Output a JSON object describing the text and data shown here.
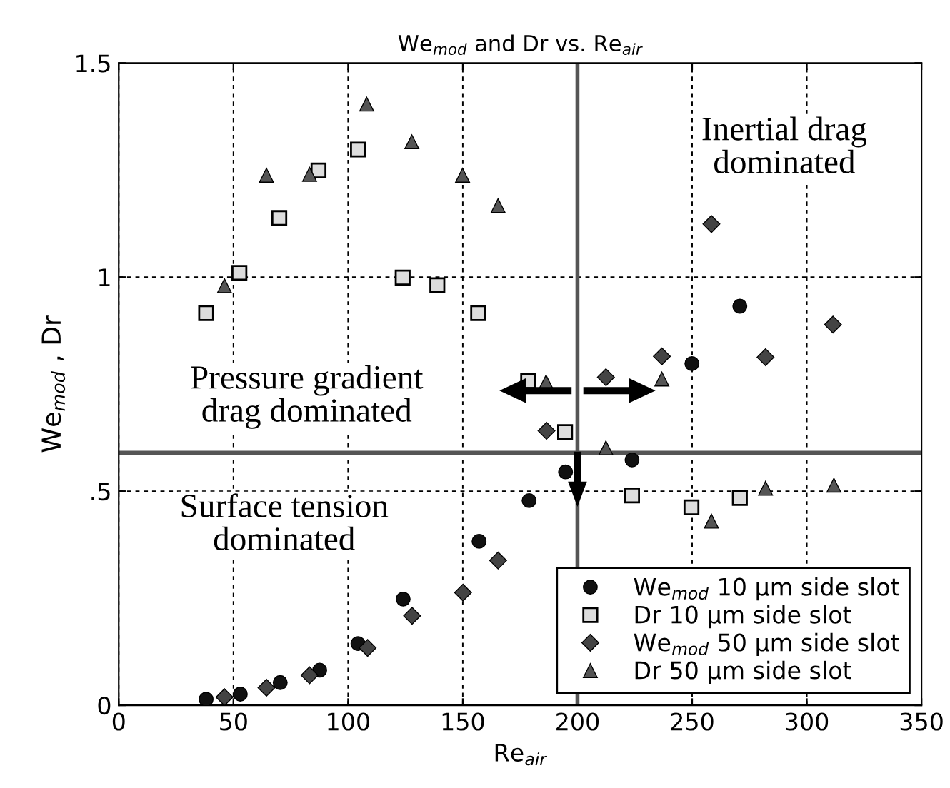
{
  "chart_data": {
    "type": "scatter",
    "title": "We$_{mod}$ and Dr vs. Re$_{air}$",
    "xlabel": "Re$_{air}$",
    "ylabel": "We$_{mod}$ , Dr",
    "xlim": [
      0,
      350
    ],
    "xticks": [
      0,
      50,
      100,
      150,
      200,
      250,
      300,
      350
    ],
    "ylim": [
      0,
      1.5
    ],
    "yticks": [
      0,
      {
        "value": 0.5,
        "label": ".5"
      },
      1,
      {
        "value": 1.5,
        "label": "1.5"
      }
    ],
    "grid": true,
    "legend": "bottom right",
    "series": [
      {
        "name": "We$_{mod}$ 10 μm side slot",
        "color": "#111111",
        "marker": "circle",
        "x": [
          38.1,
          53,
          70.4,
          87.6,
          104.3,
          124,
          157.1,
          178.9,
          194.8,
          223.8,
          249.9,
          270.8
        ],
        "values": [
          0.014,
          0.026,
          0.053,
          0.082,
          0.144,
          0.248,
          0.383,
          0.478,
          0.545,
          0.573,
          0.798,
          0.932
        ]
      },
      {
        "name": "Dr 10 μm side slot",
        "color": "#dddddd",
        "marker": "square",
        "x": [
          38.1,
          52.6,
          70,
          87.1,
          104.3,
          123.8,
          138.9,
          156.7,
          178.5,
          194.6,
          223.8,
          249.7,
          270.8
        ],
        "values": [
          0.916,
          1.01,
          1.138,
          1.249,
          1.298,
          0.999,
          0.981,
          0.916,
          0.757,
          0.638,
          0.49,
          0.462,
          0.484
        ]
      },
      {
        "name": "We$_{mod}$ 50 μm side slot",
        "color": "#444444",
        "marker": "diamond",
        "x": [
          46.1,
          64.4,
          83.2,
          108.5,
          127.9,
          150.1,
          165.4,
          186.5,
          212.4,
          236.8,
          258.4,
          282,
          311.4
        ],
        "values": [
          0.019,
          0.041,
          0.07,
          0.134,
          0.209,
          0.263,
          0.338,
          0.641,
          0.766,
          0.815,
          1.124,
          0.813,
          0.889
        ]
      },
      {
        "name": "Dr 50 μm side slot",
        "color": "#555555",
        "marker": "triangle",
        "x": [
          46.1,
          64.4,
          83.2,
          108.1,
          127.8,
          149.9,
          165.4,
          186.3,
          212.4,
          236.8,
          258.4,
          282,
          311.8
        ],
        "values": [
          0.98,
          1.238,
          1.24,
          1.404,
          1.316,
          1.238,
          1.167,
          0.755,
          0.601,
          0.762,
          0.43,
          0.507,
          0.514
        ]
      }
    ],
    "ref_lines": [
      {
        "axis": "x",
        "value": 200,
        "color": "#555555"
      },
      {
        "axis": "y",
        "value": 0.59,
        "color": "#555555"
      }
    ],
    "annotations": [
      "Inertial drag\ndominated",
      "Pressure gradient\ndrag dominated",
      "Surface tension\ndominated"
    ]
  }
}
